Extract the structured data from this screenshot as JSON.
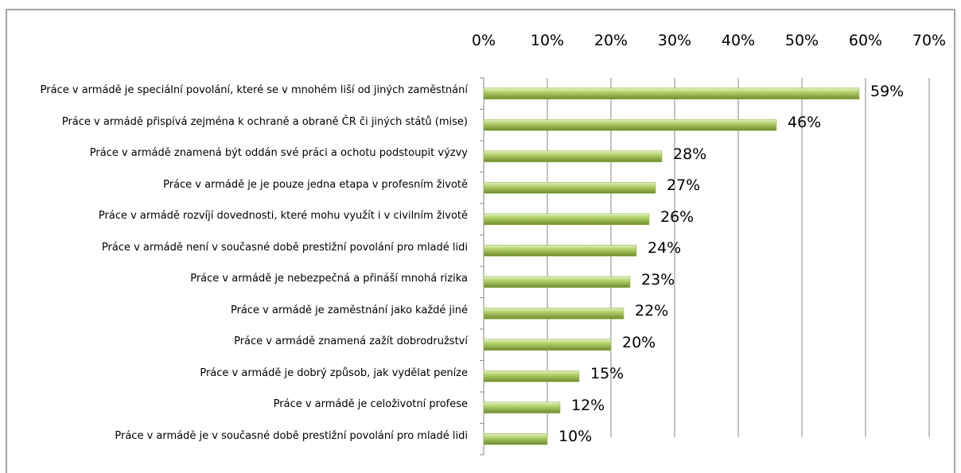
{
  "chart_data": {
    "type": "bar",
    "orientation": "horizontal",
    "categories": [
      "Práce v armádě je speciální povolání, které se v mnohém liší od jiných zaměstnání",
      "Práce v armádě přispívá zejména k ochraně a obraně ČR či jiných států (mise)",
      "Práce v armádě znamená být oddán své práci a ochotu podstoupit výzvy",
      "Práce v armádě je je pouze jedna etapa v profesním životě",
      "Práce v armádě rozvíjí dovednosti, které mohu využít i v civilním životě",
      "Práce v armádě není v současné době prestižní povolání pro mladé lidi",
      "Práce v armádě je nebezpečná a přináší mnohá rizika",
      "Práce v armádě je zaměstnání jako každé jiné",
      "Práce v armádě znamená zažít dobrodružství",
      "Práce v armádě je dobrý způsob,  jak vydělat peníze",
      "Práce v armádě je celoživotní profese",
      "Práce v armádě je v současné době prestižní povolání pro mladé lidi"
    ],
    "values": [
      59,
      46,
      28,
      27,
      26,
      24,
      23,
      22,
      20,
      15,
      12,
      10
    ],
    "value_labels": [
      "59%",
      "46%",
      "28%",
      "27%",
      "26%",
      "24%",
      "23%",
      "22%",
      "20%",
      "15%",
      "12%",
      "10%"
    ],
    "color": "#9bbb59",
    "xlim": [
      0,
      70
    ],
    "xticks": [
      {
        "value": 0,
        "label": "0%"
      },
      {
        "value": 10,
        "label": "10%"
      },
      {
        "value": 20,
        "label": "20%"
      },
      {
        "value": 30,
        "label": "30%"
      },
      {
        "value": 40,
        "label": "40%"
      },
      {
        "value": 50,
        "label": "50%"
      },
      {
        "value": 60,
        "label": "60%"
      },
      {
        "value": 70,
        "label": "70%"
      }
    ],
    "grid": true
  }
}
